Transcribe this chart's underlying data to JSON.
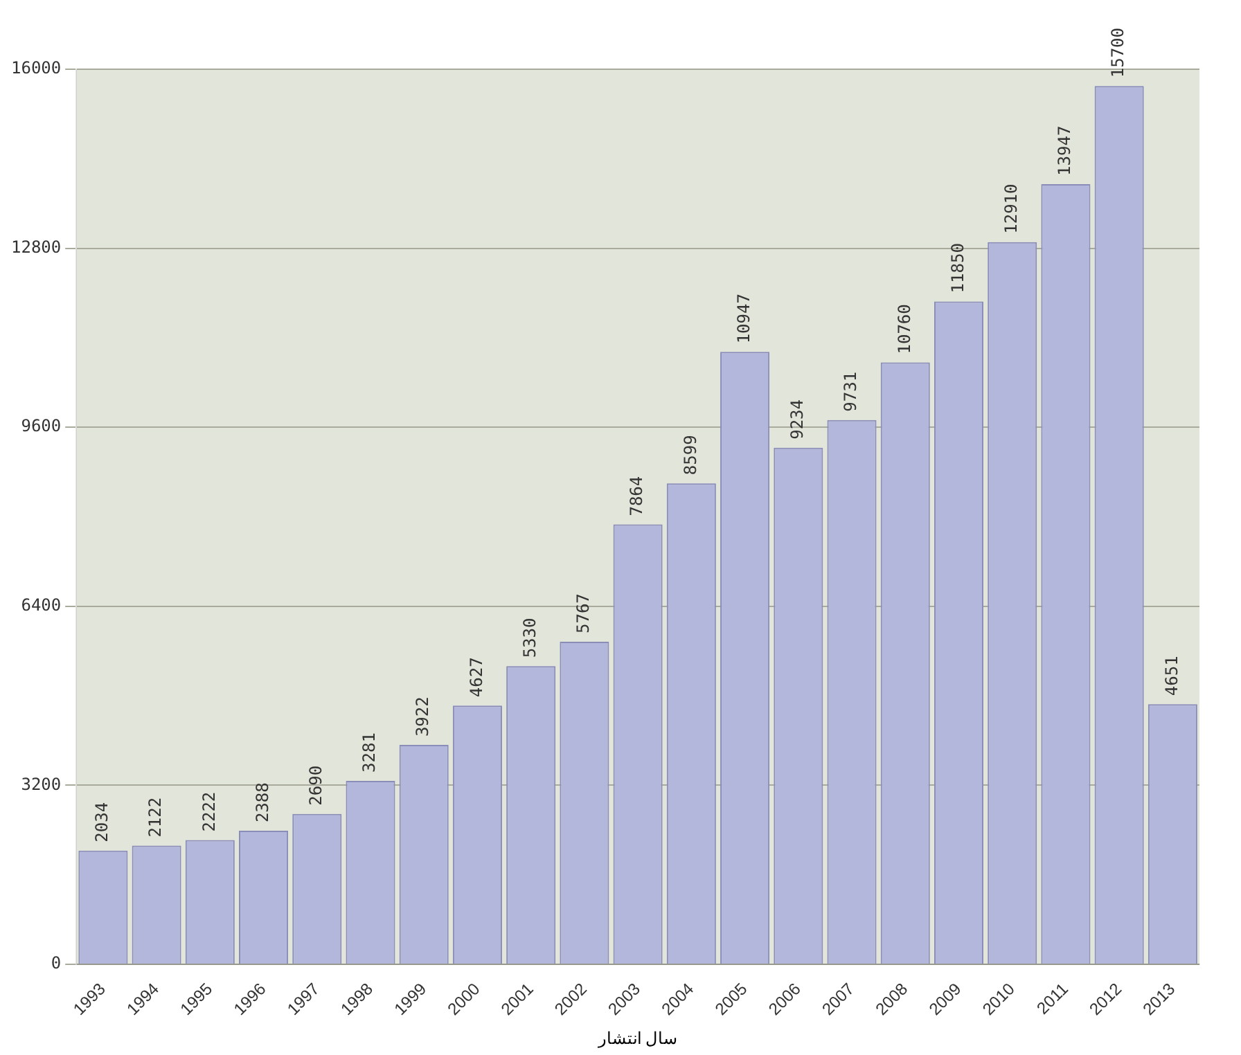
{
  "chart_data": {
    "type": "bar",
    "xlabel": "سال انتشار",
    "categories": [
      "1993",
      "1994",
      "1995",
      "1996",
      "1997",
      "1998",
      "1999",
      "2000",
      "2001",
      "2002",
      "2003",
      "2004",
      "2005",
      "2006",
      "2007",
      "2008",
      "2009",
      "2010",
      "2011",
      "2012",
      "2013"
    ],
    "values": [
      2034,
      2122,
      2222,
      2388,
      2690,
      3281,
      3922,
      4627,
      5330,
      5767,
      7864,
      8599,
      10947,
      9234,
      9731,
      10760,
      11850,
      12910,
      13947,
      15700,
      4651
    ],
    "color": "#b4b7dc",
    "ylim": [
      0,
      16000
    ],
    "yticks": [
      0,
      3200,
      6400,
      9600,
      12800,
      16000
    ],
    "grid": "y",
    "data_labels": true,
    "legend": false
  }
}
